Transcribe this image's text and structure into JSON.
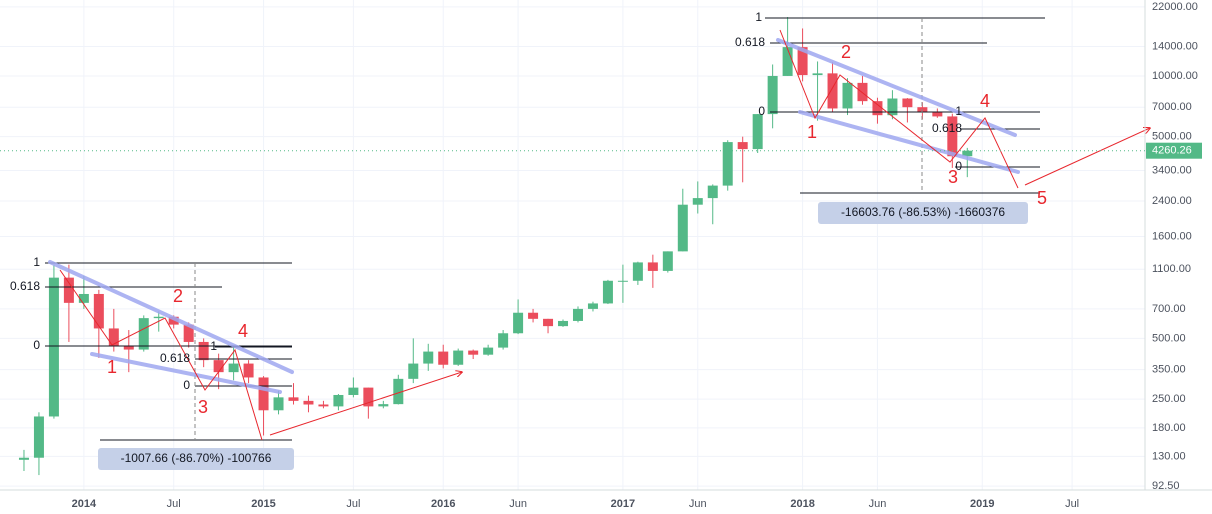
{
  "chart_data": {
    "type": "candlestick",
    "log_scale": true,
    "grid": true,
    "up_color": "#53b987",
    "down_color": "#eb4d5c",
    "x": [
      "2013-09",
      "2013-10",
      "2013-11",
      "2013-12",
      "2014-01",
      "2014-02",
      "2014-03",
      "2014-04",
      "2014-05",
      "2014-06",
      "2014-07",
      "2014-08",
      "2014-09",
      "2014-10",
      "2014-11",
      "2014-12",
      "2015-01",
      "2015-02",
      "2015-03",
      "2015-04",
      "2015-05",
      "2015-06",
      "2015-07",
      "2015-08",
      "2015-09",
      "2015-10",
      "2015-11",
      "2015-12",
      "2016-01",
      "2016-02",
      "2016-03",
      "2016-04",
      "2016-05",
      "2016-06",
      "2016-07",
      "2016-08",
      "2016-09",
      "2016-10",
      "2016-11",
      "2016-12",
      "2017-01",
      "2017-02",
      "2017-03",
      "2017-04",
      "2017-05",
      "2017-06",
      "2017-07",
      "2017-08",
      "2017-09",
      "2017-10",
      "2017-11",
      "2017-12",
      "2018-01",
      "2018-02",
      "2018-03",
      "2018-04",
      "2018-05",
      "2018-06",
      "2018-07",
      "2018-08",
      "2018-09",
      "2018-10",
      "2018-11",
      "2018-12"
    ],
    "open": [
      125,
      128,
      205,
      1000,
      750,
      830,
      560,
      460,
      440,
      630,
      640,
      585,
      480,
      390,
      340,
      375,
      320,
      220,
      255,
      245,
      235,
      230,
      262,
      285,
      230,
      236,
      315,
      375,
      430,
      370,
      435,
      415,
      450,
      530,
      670,
      625,
      575,
      610,
      700,
      745,
      965,
      965,
      1190,
      1080,
      1350,
      2300,
      2480,
      2860,
      4700,
      4340,
      6470,
      10000,
      13900,
      10100,
      10300,
      6900,
      9240,
      7500,
      6390,
      7730,
      7000,
      6600,
      6300,
      4000
    ],
    "high": [
      140,
      215,
      1160,
      1160,
      1020,
      870,
      700,
      550,
      650,
      680,
      650,
      600,
      500,
      420,
      460,
      390,
      325,
      275,
      300,
      260,
      245,
      265,
      320,
      285,
      245,
      330,
      500,
      470,
      465,
      445,
      440,
      465,
      550,
      780,
      700,
      625,
      620,
      720,
      760,
      975,
      1160,
      1200,
      1300,
      1350,
      2760,
      3000,
      2900,
      4800,
      5000,
      6470,
      11400,
      19600,
      17200,
      11800,
      11700,
      9750,
      10000,
      7800,
      8500,
      7770,
      7400,
      6900,
      6500,
      4400
    ],
    "low": [
      110,
      105,
      200,
      480,
      700,
      400,
      430,
      340,
      430,
      540,
      560,
      450,
      360,
      280,
      310,
      300,
      165,
      210,
      235,
      215,
      225,
      220,
      255,
      200,
      225,
      235,
      300,
      345,
      355,
      365,
      395,
      410,
      440,
      525,
      600,
      530,
      570,
      600,
      680,
      740,
      750,
      920,
      890,
      1060,
      1350,
      2080,
      1840,
      2700,
      2970,
      4150,
      5500,
      10000,
      9400,
      6000,
      6600,
      6400,
      7200,
      5800,
      6100,
      5880,
      6100,
      6200,
      3500,
      3150
    ],
    "close": [
      128,
      205,
      1000,
      750,
      830,
      560,
      460,
      440,
      630,
      640,
      585,
      480,
      390,
      340,
      375,
      320,
      220,
      255,
      245,
      235,
      230,
      262,
      285,
      230,
      236,
      315,
      375,
      430,
      370,
      435,
      415,
      450,
      530,
      670,
      625,
      575,
      610,
      700,
      745,
      965,
      965,
      1190,
      1080,
      1350,
      2300,
      2480,
      2860,
      4700,
      4340,
      6470,
      10000,
      13900,
      10100,
      10300,
      6900,
      9240,
      7500,
      6390,
      7730,
      7000,
      6600,
      6300,
      4000,
      4260.26
    ],
    "last_price": 4260.26,
    "last_price_label": "4260.26",
    "xlim": [
      "2013-08",
      "2019-11"
    ],
    "xticks": [
      {
        "value": "2014-01",
        "label": "2014"
      },
      {
        "value": "2014-07",
        "label": "Jul"
      },
      {
        "value": "2015-01",
        "label": "2015"
      },
      {
        "value": "2015-07",
        "label": "Jul"
      },
      {
        "value": "2016-01",
        "label": "2016"
      },
      {
        "value": "2016-06",
        "label": "Jun"
      },
      {
        "value": "2017-01",
        "label": "2017"
      },
      {
        "value": "2017-06",
        "label": "Jun"
      },
      {
        "value": "2018-01",
        "label": "2018"
      },
      {
        "value": "2018-06",
        "label": "Jun"
      },
      {
        "value": "2019-01",
        "label": "2019"
      },
      {
        "value": "2019-07",
        "label": "Jul"
      }
    ],
    "ylim": [
      79,
      23800
    ],
    "yticks": [
      {
        "value": 92.5,
        "label": "92.50"
      },
      {
        "value": 130,
        "label": "130.00"
      },
      {
        "value": 180,
        "label": "180.00"
      },
      {
        "value": 250,
        "label": "250.00"
      },
      {
        "value": 350,
        "label": "350.00"
      },
      {
        "value": 500,
        "label": "500.00"
      },
      {
        "value": 700,
        "label": "700.00"
      },
      {
        "value": 1100,
        "label": "1100.00"
      },
      {
        "value": 1600,
        "label": "1600.00"
      },
      {
        "value": 2400,
        "label": "2400.00"
      },
      {
        "value": 3400,
        "label": "3400.00"
      },
      {
        "value": 5000,
        "label": "5000.00"
      },
      {
        "value": 7000,
        "label": "7000.00"
      },
      {
        "value": 10000,
        "label": "10000.00"
      },
      {
        "value": 14000,
        "label": "14000.00"
      },
      {
        "value": 22000,
        "label": "22000.00"
      }
    ],
    "annotations": {
      "fib_2014": [
        "1",
        "0.618",
        "0"
      ],
      "fib_2014_small": [
        "1",
        "0.618",
        "0"
      ],
      "waves_2014": [
        "1",
        "2",
        "3",
        "4"
      ],
      "measure_2014": "-1007.66 (-86.70%) -100766",
      "fib_2018": [
        "1",
        "0.618",
        "0"
      ],
      "fib_2018_small": [
        "1",
        "0.618",
        "0"
      ],
      "waves_2018": [
        "1",
        "2",
        "3",
        "4",
        "5"
      ],
      "measure_2018": "-16603.76 (-86.53%) -1660376"
    }
  }
}
